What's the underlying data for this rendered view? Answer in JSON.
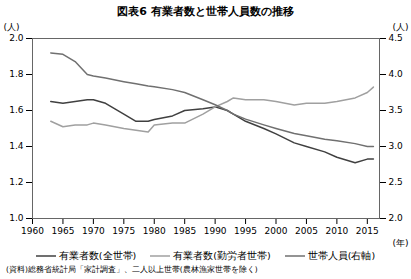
{
  "chart_data": {
    "type": "line",
    "title": "図表6 有業者数と世帯人員数の推移",
    "x_label": "(年)",
    "y_label": "(人)",
    "y2_label": "(人)",
    "caption": "(資料)総務省統計局「家計調査」、二人以上世帯(農林漁家世帯を除く)",
    "legend": "bottom",
    "grid": false,
    "xlim": [
      1960,
      2017
    ],
    "xticks": [
      1960,
      1965,
      1970,
      1975,
      1980,
      1985,
      1990,
      1995,
      2000,
      2005,
      2010,
      2015
    ],
    "ylim": [
      1.0,
      2.0
    ],
    "yticks": [
      {
        "value": 1.0,
        "label": "1.0"
      },
      {
        "value": 1.2,
        "label": "1.2"
      },
      {
        "value": 1.4,
        "label": "1.4"
      },
      {
        "value": 1.6,
        "label": "1.6"
      },
      {
        "value": 1.8,
        "label": "1.8"
      },
      {
        "value": 2.0,
        "label": "2.0"
      }
    ],
    "y2lim": [
      2.0,
      4.5
    ],
    "y2ticks": [
      {
        "value": 2.0,
        "label": "2.0"
      },
      {
        "value": 2.5,
        "label": "2.5"
      },
      {
        "value": 3.0,
        "label": "3.0"
      },
      {
        "value": 3.5,
        "label": "3.5"
      },
      {
        "value": 4.0,
        "label": "4.0"
      },
      {
        "value": 4.5,
        "label": "4.5"
      }
    ],
    "x": [
      1963,
      1965,
      1967,
      1969,
      1970,
      1972,
      1975,
      1977,
      1979,
      1980,
      1983,
      1985,
      1988,
      1990,
      1992,
      1993,
      1995,
      1998,
      2000,
      2003,
      2005,
      2008,
      2010,
      2013,
      2015,
      2016
    ],
    "series": [
      {
        "name": "有業者数(全世帯)",
        "color": "#404040",
        "line_style": "solid",
        "values": [
          1.65,
          1.64,
          1.65,
          1.66,
          1.66,
          1.64,
          1.58,
          1.54,
          1.54,
          1.55,
          1.57,
          1.6,
          1.61,
          1.62,
          1.6,
          1.58,
          1.54,
          1.5,
          1.47,
          1.42,
          1.4,
          1.37,
          1.34,
          1.31,
          1.33,
          1.33
        ]
      },
      {
        "name": "有業者数(勤労者世帯)",
        "color": "#a0a0a0",
        "line_style": "solid",
        "values": [
          1.54,
          1.51,
          1.52,
          1.52,
          1.53,
          1.52,
          1.5,
          1.49,
          1.48,
          1.52,
          1.53,
          1.53,
          1.58,
          1.62,
          1.65,
          1.67,
          1.66,
          1.66,
          1.65,
          1.63,
          1.64,
          1.64,
          1.65,
          1.67,
          1.7,
          1.73
        ]
      },
      {
        "name": "世帯人員(右軸)",
        "color": "#707070",
        "line_style": "solid",
        "axis": "y2",
        "values": [
          4.3,
          4.28,
          4.18,
          4.0,
          3.98,
          3.95,
          3.9,
          3.87,
          3.84,
          3.83,
          3.79,
          3.75,
          3.65,
          3.58,
          3.5,
          3.45,
          3.38,
          3.3,
          3.25,
          3.18,
          3.15,
          3.1,
          3.08,
          3.04,
          3.0,
          3.0
        ]
      }
    ]
  }
}
